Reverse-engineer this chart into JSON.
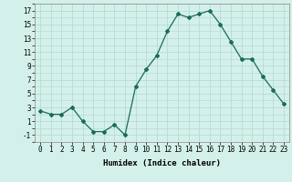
{
  "x": [
    0,
    1,
    2,
    3,
    4,
    5,
    6,
    7,
    8,
    9,
    10,
    11,
    12,
    13,
    14,
    15,
    16,
    17,
    18,
    19,
    20,
    21,
    22,
    23
  ],
  "y": [
    2.5,
    2.0,
    2.0,
    3.0,
    1.0,
    -0.5,
    -0.5,
    0.5,
    -1.0,
    6.0,
    8.5,
    10.5,
    14.0,
    16.5,
    16.0,
    16.5,
    17.0,
    15.0,
    12.5,
    10.0,
    10.0,
    7.5,
    5.5,
    3.5
  ],
  "line_color": "#1a6b5a",
  "marker": "D",
  "marker_size": 2.0,
  "bg_color": "#d4f0ea",
  "grid_color": "#b0d8cf",
  "xlabel": "Humidex (Indice chaleur)",
  "ylim": [
    -2,
    18
  ],
  "yticks": [
    -1,
    1,
    3,
    5,
    7,
    9,
    11,
    13,
    15,
    17
  ],
  "xticks": [
    0,
    1,
    2,
    3,
    4,
    5,
    6,
    7,
    8,
    9,
    10,
    11,
    12,
    13,
    14,
    15,
    16,
    17,
    18,
    19,
    20,
    21,
    22,
    23
  ],
  "xlim": [
    -0.5,
    23.5
  ],
  "label_fontsize": 6.5,
  "tick_fontsize": 5.5
}
